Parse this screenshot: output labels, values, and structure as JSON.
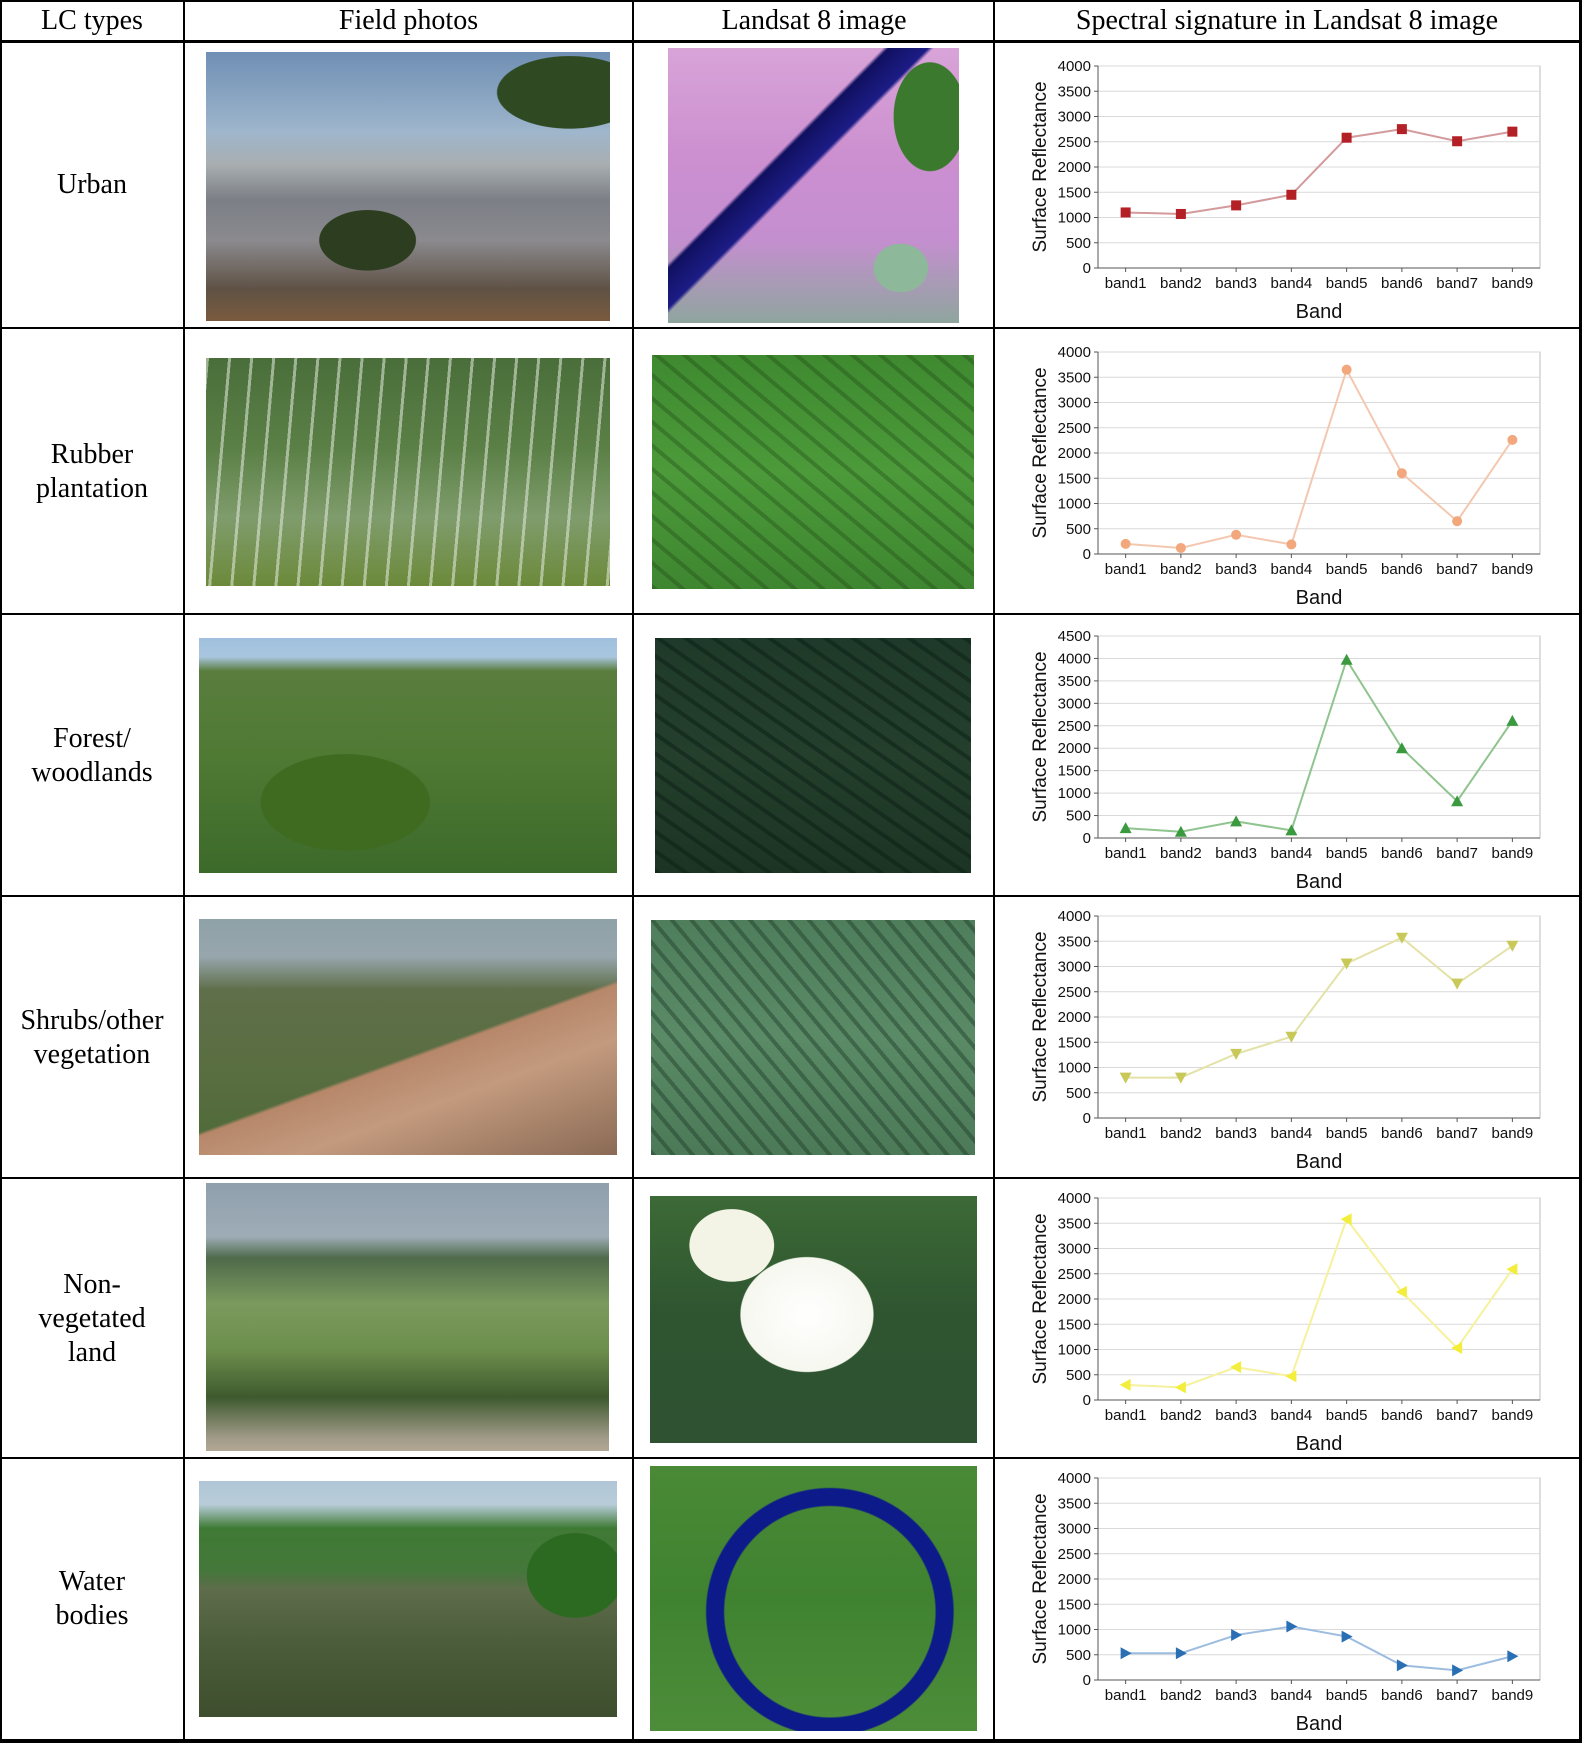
{
  "table": {
    "headers": [
      "LC types",
      "Field photos",
      "Landsat 8 image",
      "Spectral signature in Landsat 8 image"
    ],
    "rows": [
      {
        "lc_type": "Urban",
        "field_photo_icon": "field-photo-urban",
        "landsat_icon": "landsat-urban",
        "chart_index": 0
      },
      {
        "lc_type": "Rubber\nplantation",
        "field_photo_icon": "field-photo-rubber",
        "landsat_icon": "landsat-rubber",
        "chart_index": 1
      },
      {
        "lc_type": "Forest/\nwoodlands",
        "field_photo_icon": "field-photo-forest",
        "landsat_icon": "landsat-forest",
        "chart_index": 2
      },
      {
        "lc_type": "Shrubs/other\nvegetation",
        "field_photo_icon": "field-photo-shrubs",
        "landsat_icon": "landsat-shrubs",
        "chart_index": 3
      },
      {
        "lc_type": "Non-\nvegetated\nland",
        "field_photo_icon": "field-photo-nonveg",
        "landsat_icon": "landsat-nonveg",
        "chart_index": 4
      },
      {
        "lc_type": "Water\nbodies",
        "field_photo_icon": "field-photo-water",
        "landsat_icon": "landsat-water",
        "chart_index": 5
      }
    ]
  },
  "chart_data": [
    {
      "type": "line",
      "categories": [
        "band1",
        "band2",
        "band3",
        "band4",
        "band5",
        "band6",
        "band7",
        "band9"
      ],
      "values": [
        1100,
        1070,
        1240,
        1450,
        2580,
        2750,
        2510,
        2700
      ],
      "xlabel": "Band",
      "ylabel": "Surface Reflectance",
      "ylim": [
        0,
        4000
      ],
      "yticks": [
        0,
        500,
        1000,
        1500,
        2000,
        2500,
        3000,
        3500,
        4000
      ],
      "grid": true,
      "marker": "square",
      "color": "#b32025",
      "line_color": "#d39a9c"
    },
    {
      "type": "line",
      "categories": [
        "band1",
        "band2",
        "band3",
        "band4",
        "band5",
        "band6",
        "band7",
        "band9"
      ],
      "values": [
        200,
        120,
        380,
        190,
        3650,
        1600,
        650,
        2260
      ],
      "xlabel": "Band",
      "ylabel": "Surface Reflectance",
      "ylim": [
        0,
        4000
      ],
      "yticks": [
        0,
        500,
        1000,
        1500,
        2000,
        2500,
        3000,
        3500,
        4000
      ],
      "grid": true,
      "marker": "circle",
      "color": "#f2a77d",
      "line_color": "#f4c8b0"
    },
    {
      "type": "line",
      "categories": [
        "band1",
        "band2",
        "band3",
        "band4",
        "band5",
        "band6",
        "band7",
        "band9"
      ],
      "values": [
        220,
        140,
        370,
        170,
        3970,
        2000,
        820,
        2610
      ],
      "xlabel": "Band",
      "ylabel": "Surface Reflectance",
      "ylim": [
        0,
        4500
      ],
      "yticks": [
        0,
        500,
        1000,
        1500,
        2000,
        2500,
        3000,
        3500,
        4000,
        4500
      ],
      "grid": true,
      "marker": "triangle-up",
      "color": "#3b9a3f",
      "line_color": "#8fc48f"
    },
    {
      "type": "line",
      "categories": [
        "band1",
        "band2",
        "band3",
        "band4",
        "band5",
        "band6",
        "band7",
        "band9"
      ],
      "values": [
        800,
        800,
        1270,
        1610,
        3060,
        3570,
        2660,
        3410
      ],
      "xlabel": "Band",
      "ylabel": "Surface Reflectance",
      "ylim": [
        0,
        4000
      ],
      "yticks": [
        0,
        500,
        1000,
        1500,
        2000,
        2500,
        3000,
        3500,
        4000
      ],
      "grid": true,
      "marker": "triangle-down",
      "color": "#c9c95a",
      "line_color": "#e3e2a8"
    },
    {
      "type": "line",
      "categories": [
        "band1",
        "band2",
        "band3",
        "band4",
        "band5",
        "band6",
        "band7",
        "band9"
      ],
      "values": [
        300,
        250,
        650,
        470,
        3580,
        2140,
        1030,
        2590
      ],
      "xlabel": "Band",
      "ylabel": "Surface Reflectance",
      "ylim": [
        0,
        4000
      ],
      "yticks": [
        0,
        500,
        1000,
        1500,
        2000,
        2500,
        3000,
        3500,
        4000
      ],
      "grid": true,
      "marker": "triangle-left",
      "color": "#f3ee3c",
      "line_color": "#f6f19c"
    },
    {
      "type": "line",
      "categories": [
        "band1",
        "band2",
        "band3",
        "band4",
        "band5",
        "band6",
        "band7",
        "band9"
      ],
      "values": [
        530,
        530,
        890,
        1060,
        860,
        290,
        190,
        470
      ],
      "xlabel": "Band",
      "ylabel": "Surface Reflectance",
      "ylim": [
        0,
        4000
      ],
      "yticks": [
        0,
        500,
        1000,
        1500,
        2000,
        2500,
        3000,
        3500,
        4000
      ],
      "grid": true,
      "marker": "triangle-right",
      "color": "#2a6eb4",
      "line_color": "#9cbddf"
    }
  ]
}
